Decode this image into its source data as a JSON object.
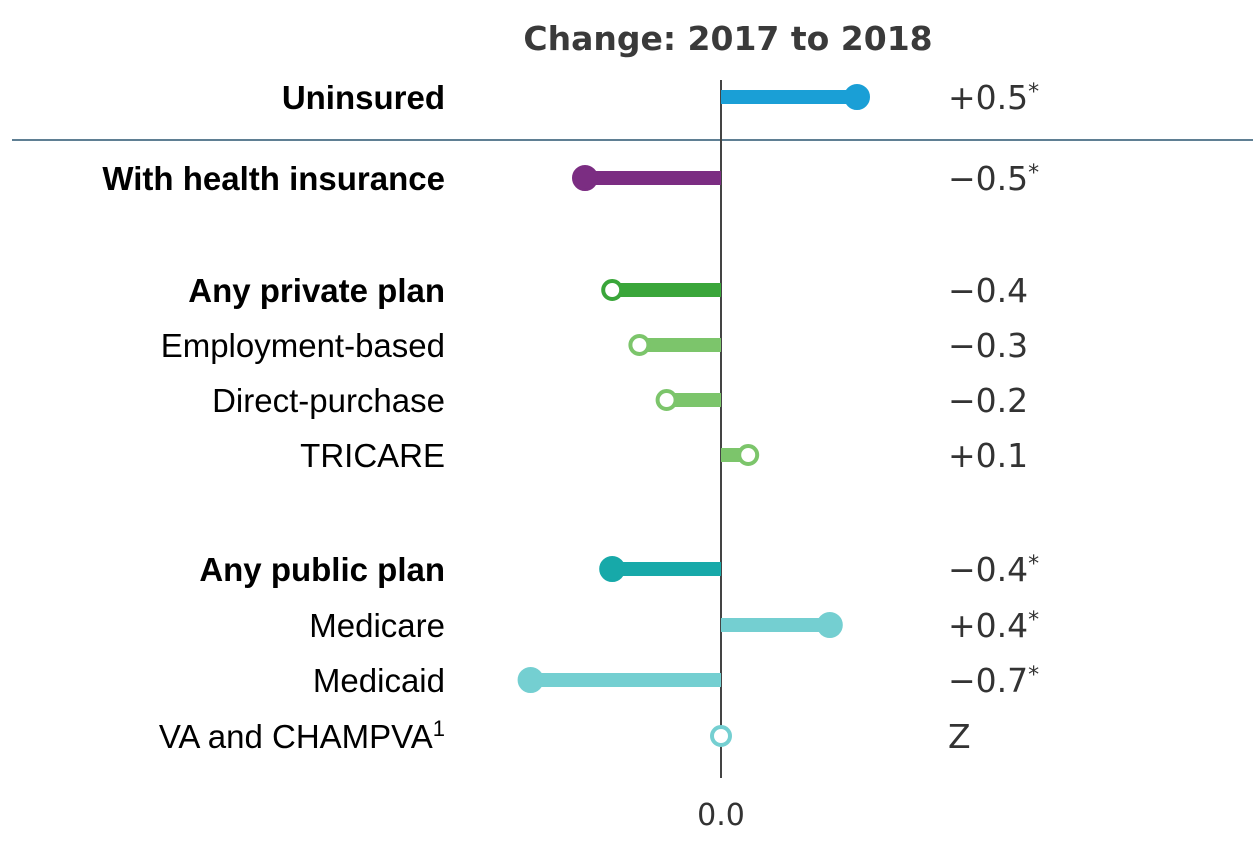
{
  "chart_data": {
    "type": "lollipop",
    "title": "Change: 2017 to 2018",
    "x_tick_label": "0.0",
    "x_zero": 0,
    "xlim": [
      -0.75,
      1.1
    ],
    "rows": [
      {
        "label": "Uninsured",
        "bold": true,
        "value": 0.5,
        "value_label": "+0.5",
        "significant": true,
        "filled": true,
        "color": "#1a9fd6"
      },
      {
        "label": "With health insurance",
        "bold": true,
        "value": -0.5,
        "value_label": "−0.5",
        "significant": true,
        "filled": true,
        "color": "#7b2d82"
      },
      {
        "label": "Any private plan",
        "bold": true,
        "value": -0.4,
        "value_label": "−0.4",
        "significant": false,
        "filled": false,
        "color": "#3aa63a"
      },
      {
        "label": "Employment-based",
        "bold": false,
        "value": -0.3,
        "value_label": "−0.3",
        "significant": false,
        "filled": false,
        "color": "#7cc56b"
      },
      {
        "label": "Direct-purchase",
        "bold": false,
        "value": -0.2,
        "value_label": "−0.2",
        "significant": false,
        "filled": false,
        "color": "#7cc56b"
      },
      {
        "label": "TRICARE",
        "bold": false,
        "value": 0.1,
        "value_label": "+0.1",
        "significant": false,
        "filled": false,
        "color": "#7cc56b"
      },
      {
        "label": "Any public plan",
        "bold": true,
        "value": -0.4,
        "value_label": "−0.4",
        "significant": true,
        "filled": true,
        "color": "#17a9a9"
      },
      {
        "label": "Medicare",
        "bold": false,
        "value": 0.4,
        "value_label": "+0.4",
        "significant": true,
        "filled": true,
        "color": "#74cfd1"
      },
      {
        "label": "Medicaid",
        "bold": false,
        "value": -0.7,
        "value_label": "−0.7",
        "significant": true,
        "filled": true,
        "color": "#74cfd1"
      },
      {
        "label": "VA and CHAMPVA",
        "label_superscript": "1",
        "bold": false,
        "value": 0,
        "value_label": "Z",
        "significant": false,
        "filled": false,
        "color": "#74cfd1"
      }
    ],
    "significance_marker": "*"
  }
}
